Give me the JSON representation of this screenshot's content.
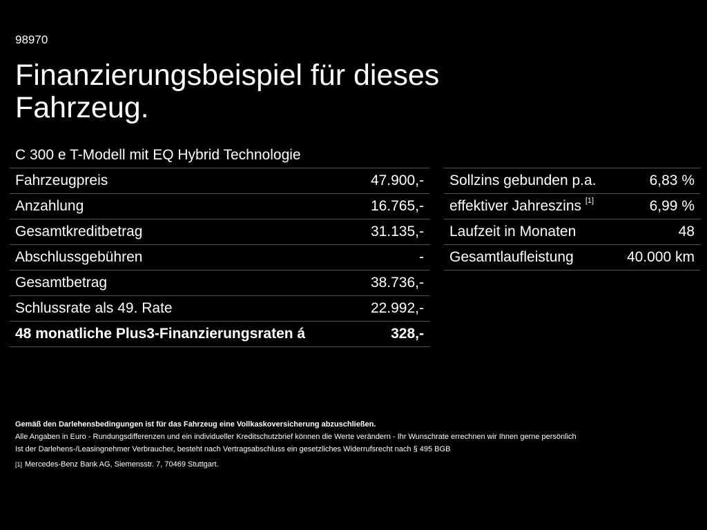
{
  "header": {
    "id": "98970",
    "title": "Finanzierungsbeispiel für dieses Fahrzeug.",
    "model": "C 300 e T-Modell mit EQ Hybrid Technologie"
  },
  "financing": {
    "rows": [
      {
        "label": "Fahrzeugpreis",
        "value": "47.900,-"
      },
      {
        "label": "Anzahlung",
        "value": "16.765,-"
      },
      {
        "label": "Gesamtkreditbetrag",
        "value": "31.135,-"
      },
      {
        "label": "Abschlussgebühren",
        "value": "-"
      },
      {
        "label": "Gesamtbetrag",
        "value": "38.736,-"
      },
      {
        "label": "Schlussrate als 49. Rate",
        "value": "22.992,-"
      }
    ],
    "total": {
      "label": "48 monatliche Plus3-Finanzierungsraten á",
      "value": "328,-"
    }
  },
  "conditions": {
    "rows": [
      {
        "label": "Sollzins gebunden p.a.",
        "value": "6,83 %"
      },
      {
        "label": "effektiver Jahreszins",
        "footnote": "[1]",
        "value": "6,99 %"
      },
      {
        "label": "Laufzeit in Monaten",
        "value": "48"
      },
      {
        "label": "Gesamtlaufleistung",
        "value": "40.000 km"
      }
    ]
  },
  "notes": {
    "insurance": "Gemäß den Darlehensbedingungen ist für das Fahrzeug eine Vollkaskoversicherung abzuschließen.",
    "disclaimer": "Alle Angaben in Euro - Rundungsdifferenzen und ein individueller Kreditschutzbrief können die Werte verändern - Ihr Wunschrate errechnen wir Ihnen gerne persönlich",
    "withdrawal": "Ist der Darlehens-/Leasingnehmer Verbraucher, besteht nach Vertragsabschluss ein gesetzliches Widerrufsrecht nach § 495 BGB",
    "footnote_marker": "[1]",
    "footnote_text": "Mercedes-Benz Bank AG, Siemensstr. 7, 70469 Stuttgart."
  }
}
